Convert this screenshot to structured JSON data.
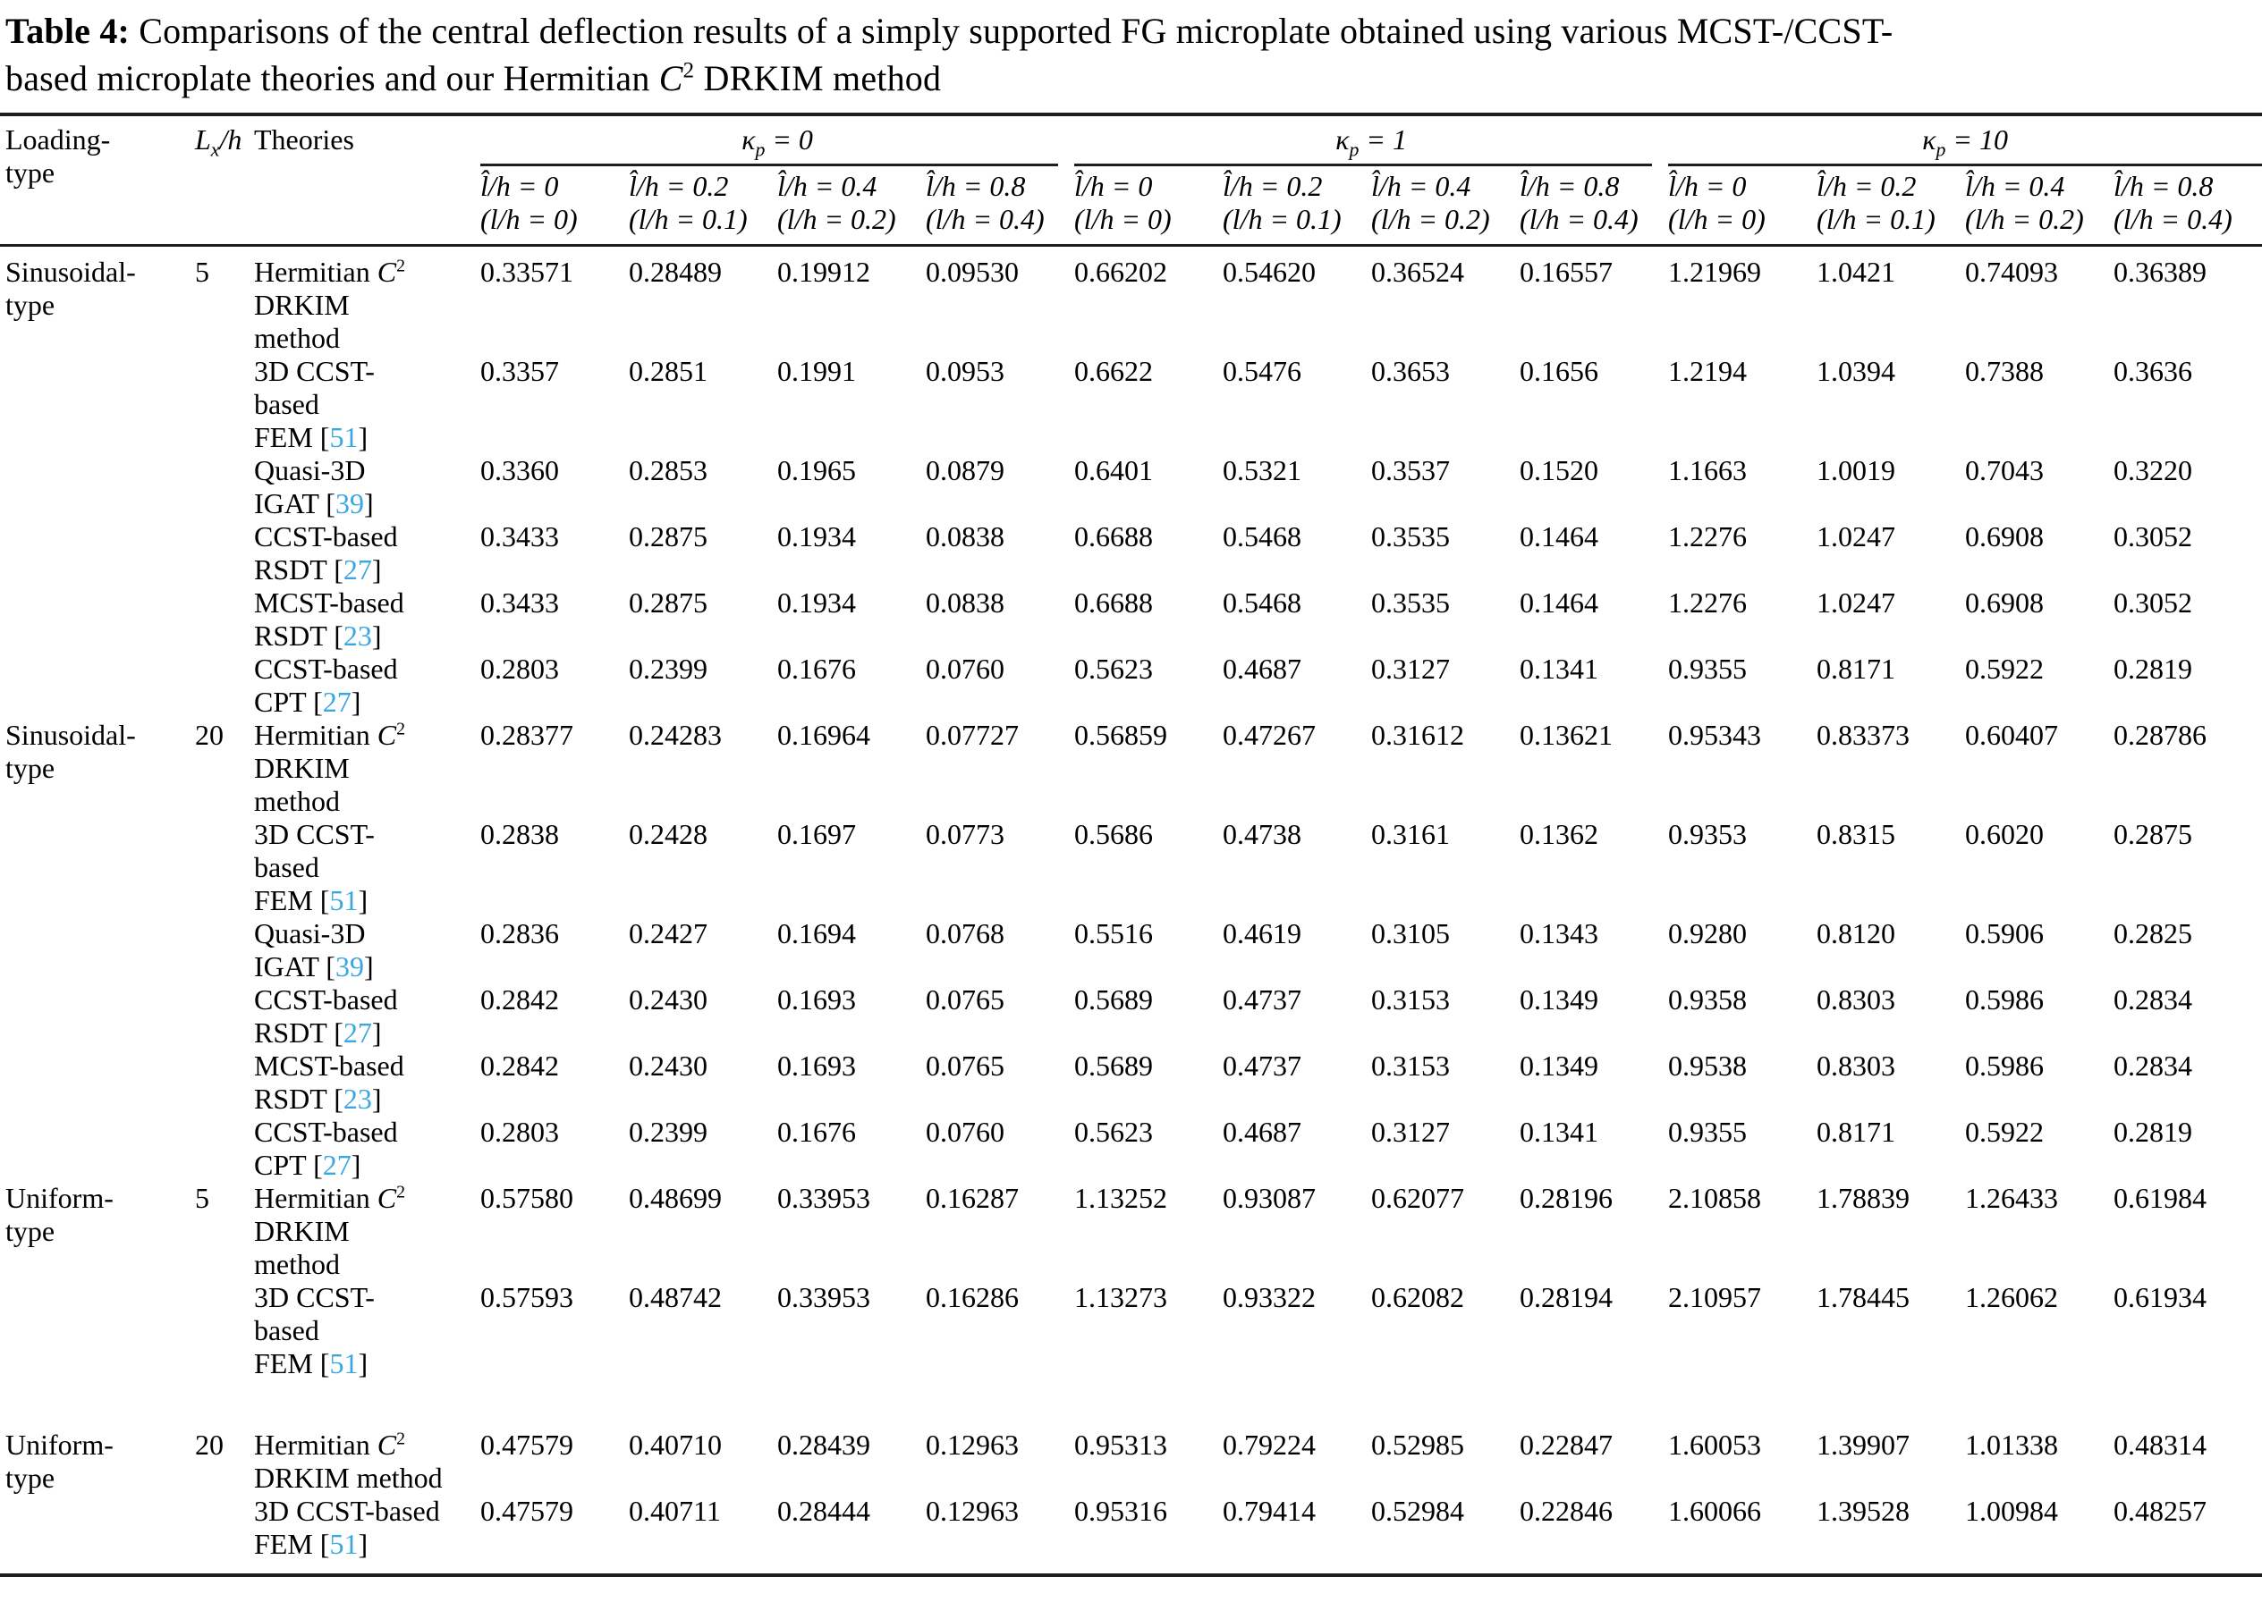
{
  "title": {
    "line1_prefix": "Table 4:",
    "line1_rest": " Comparisons of the central deflection results of a simply supported FG microplate obtained using various MCST-/CCST-",
    "line2_before_c": "based microplate theories and our Hermitian ",
    "c": "C",
    "c_sup": "2",
    "line2_after_c": " DRKIM method"
  },
  "colors": {
    "citation_ref": "#3BA7DF",
    "rule": "#1e1e1e",
    "text": "#000000",
    "background": "#ffffff"
  },
  "header": {
    "loading_line1": "Loading-",
    "loading_line2": "type",
    "lxh_base": "L",
    "lxh_sub": "x",
    "lxh_rest": "/h",
    "theories": "Theories",
    "groups": [
      {
        "sym": "κ",
        "sub": "p",
        "eq": " = 0"
      },
      {
        "sym": "κ",
        "sub": "p",
        "eq": " = 1"
      },
      {
        "sym": "κ",
        "sub": "p",
        "eq": " = 10"
      }
    ],
    "subcols": [
      {
        "top": "l̂/h = 0",
        "bottom": "(l/h = 0)"
      },
      {
        "top": "l̂/h = 0.2",
        "bottom": "(l/h = 0.1)"
      },
      {
        "top": "l̂/h = 0.4",
        "bottom": "(l/h = 0.2)"
      },
      {
        "top": "l̂/h = 0.8",
        "bottom": "(l/h = 0.4)"
      }
    ]
  },
  "table": {
    "blocks": [
      {
        "loading": [
          "Sinusoidal-",
          "type"
        ],
        "lxh": "5",
        "rows": [
          {
            "theory": [
              "Hermitian C²",
              "DRKIM",
              "method"
            ],
            "values": [
              "0.33571",
              "0.28489",
              "0.19912",
              "0.09530",
              "0.66202",
              "0.54620",
              "0.36524",
              "0.16557",
              "1.21969",
              "1.0421",
              "0.74093",
              "0.36389"
            ]
          },
          {
            "theory": [
              "3D CCST-",
              "based",
              "FEM [51]"
            ],
            "values": [
              "0.3357",
              "0.2851",
              "0.1991",
              "0.0953",
              "0.6622",
              "0.5476",
              "0.3653",
              "0.1656",
              "1.2194",
              "1.0394",
              "0.7388",
              "0.3636"
            ]
          },
          {
            "theory": [
              "Quasi-3D",
              "IGAT [39]"
            ],
            "values": [
              "0.3360",
              "0.2853",
              "0.1965",
              "0.0879",
              "0.6401",
              "0.5321",
              "0.3537",
              "0.1520",
              "1.1663",
              "1.0019",
              "0.7043",
              "0.3220"
            ]
          },
          {
            "theory": [
              "CCST-based",
              "RSDT [27]"
            ],
            "values": [
              "0.3433",
              "0.2875",
              "0.1934",
              "0.0838",
              "0.6688",
              "0.5468",
              "0.3535",
              "0.1464",
              "1.2276",
              "1.0247",
              "0.6908",
              "0.3052"
            ]
          },
          {
            "theory": [
              "MCST-based",
              "RSDT [23]"
            ],
            "values": [
              "0.3433",
              "0.2875",
              "0.1934",
              "0.0838",
              "0.6688",
              "0.5468",
              "0.3535",
              "0.1464",
              "1.2276",
              "1.0247",
              "0.6908",
              "0.3052"
            ]
          },
          {
            "theory": [
              "CCST-based",
              "CPT [27]"
            ],
            "values": [
              "0.2803",
              "0.2399",
              "0.1676",
              "0.0760",
              "0.5623",
              "0.4687",
              "0.3127",
              "0.1341",
              "0.9355",
              "0.8171",
              "0.5922",
              "0.2819"
            ]
          }
        ]
      },
      {
        "loading": [
          "Sinusoidal-",
          "type"
        ],
        "lxh": "20",
        "rows": [
          {
            "theory": [
              "Hermitian C²",
              "DRKIM",
              "method"
            ],
            "values": [
              "0.28377",
              "0.24283",
              "0.16964",
              "0.07727",
              "0.56859",
              "0.47267",
              "0.31612",
              "0.13621",
              "0.95343",
              "0.83373",
              "0.60407",
              "0.28786"
            ]
          },
          {
            "theory": [
              "3D CCST-",
              "based",
              "FEM [51]"
            ],
            "values": [
              "0.2838",
              "0.2428",
              "0.1697",
              "0.0773",
              "0.5686",
              "0.4738",
              "0.3161",
              "0.1362",
              "0.9353",
              "0.8315",
              "0.6020",
              "0.2875"
            ]
          },
          {
            "theory": [
              "Quasi-3D",
              "IGAT [39]"
            ],
            "values": [
              "0.2836",
              "0.2427",
              "0.1694",
              "0.0768",
              "0.5516",
              "0.4619",
              "0.3105",
              "0.1343",
              "0.9280",
              "0.8120",
              "0.5906",
              "0.2825"
            ]
          },
          {
            "theory": [
              "CCST-based",
              "RSDT [27]"
            ],
            "values": [
              "0.2842",
              "0.2430",
              "0.1693",
              "0.0765",
              "0.5689",
              "0.4737",
              "0.3153",
              "0.1349",
              "0.9358",
              "0.8303",
              "0.5986",
              "0.2834"
            ]
          },
          {
            "theory": [
              "MCST-based",
              "RSDT [23]"
            ],
            "values": [
              "0.2842",
              "0.2430",
              "0.1693",
              "0.0765",
              "0.5689",
              "0.4737",
              "0.3153",
              "0.1349",
              "0.9538",
              "0.8303",
              "0.5986",
              "0.2834"
            ]
          },
          {
            "theory": [
              "CCST-based",
              "CPT [27]"
            ],
            "values": [
              "0.2803",
              "0.2399",
              "0.1676",
              "0.0760",
              "0.5623",
              "0.4687",
              "0.3127",
              "0.1341",
              "0.9355",
              "0.8171",
              "0.5922",
              "0.2819"
            ]
          }
        ]
      },
      {
        "loading": [
          "Uniform-",
          "type"
        ],
        "lxh": "5",
        "rows": [
          {
            "theory": [
              "Hermitian C²",
              "DRKIM",
              "method"
            ],
            "values": [
              "0.57580",
              "0.48699",
              "0.33953",
              "0.16287",
              "1.13252",
              "0.93087",
              "0.62077",
              "0.28196",
              "2.10858",
              "1.78839",
              "1.26433",
              "0.61984"
            ]
          },
          {
            "theory": [
              "3D CCST-",
              "based",
              "FEM [51]"
            ],
            "values": [
              "0.57593",
              "0.48742",
              "0.33953",
              "0.16286",
              "1.13273",
              "0.93322",
              "0.62082",
              "0.28194",
              "2.10957",
              "1.78445",
              "1.26062",
              "0.61934"
            ]
          }
        ]
      },
      {
        "loading": [
          "Uniform-",
          "type"
        ],
        "lxh": "20",
        "rows": [
          {
            "theory": [
              "Hermitian C²",
              "DRKIM method"
            ],
            "values": [
              "0.47579",
              "0.40710",
              "0.28439",
              "0.12963",
              "0.95313",
              "0.79224",
              "0.52985",
              "0.22847",
              "1.60053",
              "1.39907",
              "1.01338",
              "0.48314"
            ]
          },
          {
            "theory": [
              "3D CCST-based",
              "FEM [51]"
            ],
            "values": [
              "0.47579",
              "0.40711",
              "0.28444",
              "0.12963",
              "0.95316",
              "0.79414",
              "0.52984",
              "0.22846",
              "1.60066",
              "1.39528",
              "1.00984",
              "0.48257"
            ]
          }
        ]
      }
    ]
  }
}
